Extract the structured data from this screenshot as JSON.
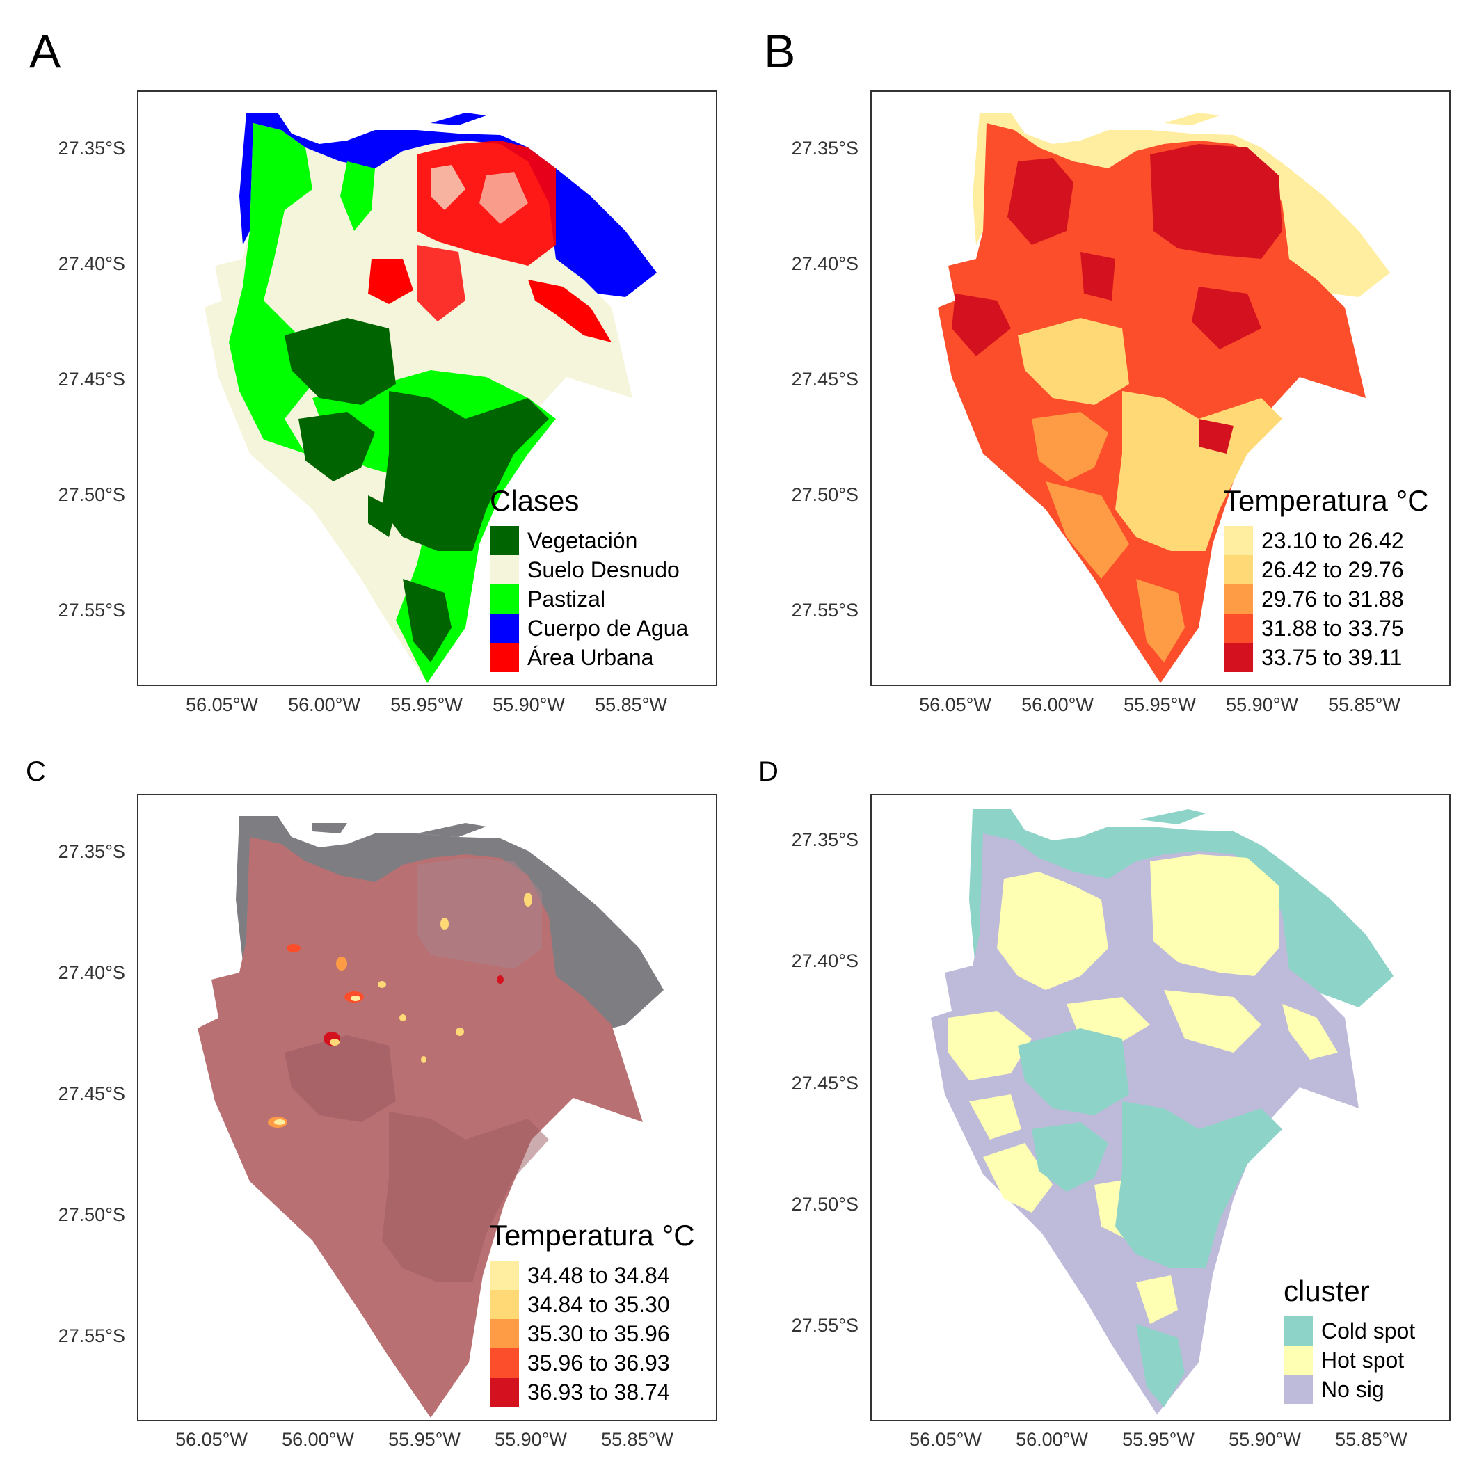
{
  "panels": [
    {
      "letter": "A",
      "y_ticks": [
        "27.35°S",
        "27.40°S",
        "27.45°S",
        "27.50°S",
        "27.55°S"
      ],
      "x_ticks": [
        "56.05°W",
        "56.00°W",
        "55.95°W",
        "55.90°W",
        "55.85°W"
      ],
      "legend": {
        "title": "Clases",
        "items": [
          {
            "label": "Vegetación",
            "color": "#006400"
          },
          {
            "label": "Suelo Desnudo",
            "color": "#f5f5dc"
          },
          {
            "label": "Pastizal",
            "color": "#00ff00"
          },
          {
            "label": "Cuerpo de Agua",
            "color": "#0000ff"
          },
          {
            "label": "Área Urbana",
            "color": "#ff0000"
          }
        ]
      }
    },
    {
      "letter": "B",
      "y_ticks": [
        "27.35°S",
        "27.40°S",
        "27.45°S",
        "27.50°S",
        "27.55°S"
      ],
      "x_ticks": [
        "56.05°W",
        "56.00°W",
        "55.95°W",
        "55.90°W",
        "55.85°W"
      ],
      "legend": {
        "title": "Temperatura °C",
        "items": [
          {
            "label": "23.10 to 26.42",
            "color": "#ffeda0"
          },
          {
            "label": "26.42 to 29.76",
            "color": "#fed976"
          },
          {
            "label": "29.76 to 31.88",
            "color": "#fd9c44"
          },
          {
            "label": "31.88 to 33.75",
            "color": "#fc4e2a"
          },
          {
            "label": "33.75 to 39.11",
            "color": "#d4111f"
          }
        ]
      }
    },
    {
      "letter": "C",
      "y_ticks": [
        "27.35°S",
        "27.40°S",
        "27.45°S",
        "27.50°S",
        "27.55°S"
      ],
      "x_ticks": [
        "56.05°W",
        "56.00°W",
        "55.95°W",
        "55.90°W",
        "55.85°W"
      ],
      "legend": {
        "title": "Temperatura °C",
        "items": [
          {
            "label": "34.48 to 34.84",
            "color": "#ffeda0"
          },
          {
            "label": "34.84 to 35.30",
            "color": "#fed976"
          },
          {
            "label": "35.30 to 35.96",
            "color": "#fd9c44"
          },
          {
            "label": "35.96 to 36.93",
            "color": "#fc4e2a"
          },
          {
            "label": "36.93 to 38.74",
            "color": "#d4111f"
          }
        ]
      }
    },
    {
      "letter": "D",
      "y_ticks": [
        "27.35°S",
        "27.40°S",
        "27.45°S",
        "27.50°S",
        "27.55°S"
      ],
      "x_ticks": [
        "56.05°W",
        "56.00°W",
        "55.95°W",
        "55.90°W",
        "55.85°W"
      ],
      "legend": {
        "title": "cluster",
        "items": [
          {
            "label": "Cold spot",
            "color": "#8dd3c7"
          },
          {
            "label": "Hot spot",
            "color": "#ffffb3"
          },
          {
            "label": "No sig",
            "color": "#bebada"
          }
        ]
      }
    }
  ],
  "map_colors": {
    "water": "#0000ff",
    "bare": "#f5f5dc",
    "pasture": "#00ff00",
    "vegetation": "#006400",
    "urban": "#ff0000",
    "c_water": "#7e7e82",
    "c_land": "#b97073",
    "c_dark": "#9b5a60"
  }
}
